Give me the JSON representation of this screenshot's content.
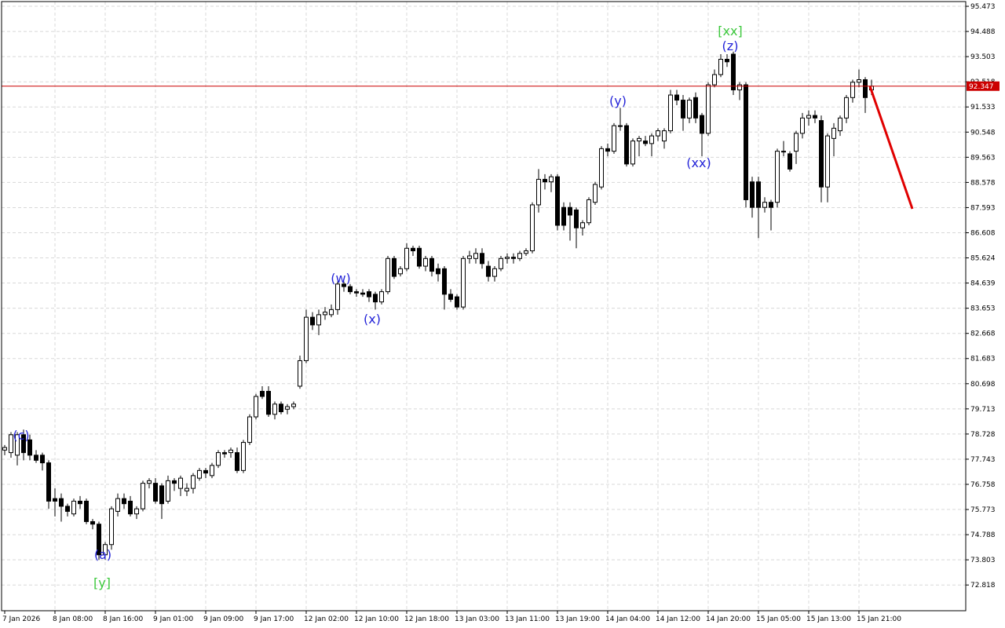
{
  "chart_data": {
    "type": "candlestick",
    "categories": [
      "7 Jan 2026",
      null,
      null,
      null,
      null,
      null,
      null,
      null,
      "8 Jan 08:00",
      null,
      null,
      null,
      null,
      null,
      null,
      null,
      "8 Jan 16:00",
      null,
      null,
      null,
      null,
      null,
      null,
      null,
      "9 Jan 01:00",
      null,
      null,
      null,
      null,
      null,
      null,
      null,
      "9 Jan 09:00",
      null,
      null,
      null,
      null,
      null,
      null,
      null,
      "9 Jan 17:00",
      null,
      null,
      null,
      null,
      null,
      null,
      null,
      "12 Jan 02:00",
      null,
      null,
      null,
      null,
      null,
      null,
      null,
      "12 Jan 10:00",
      null,
      null,
      null,
      null,
      null,
      null,
      null,
      "12 Jan 18:00",
      null,
      null,
      null,
      null,
      null,
      null,
      null,
      "13 Jan 03:00",
      null,
      null,
      null,
      null,
      null,
      null,
      null,
      "13 Jan 11:00",
      null,
      null,
      null,
      null,
      null,
      null,
      null,
      "13 Jan 19:00",
      null,
      null,
      null,
      null,
      null,
      null,
      null,
      "14 Jan 04:00",
      null,
      null,
      null,
      null,
      null,
      null,
      null,
      "14 Jan 12:00",
      null,
      null,
      null,
      null,
      null,
      null,
      null,
      "14 Jan 20:00",
      null,
      null,
      null,
      null,
      null,
      null,
      null,
      "15 Jan 05:00",
      null,
      null,
      null,
      null,
      null,
      null,
      null,
      "15 Jan 13:00",
      null,
      null,
      null,
      null,
      null,
      null,
      null,
      "15 Jan 21:00",
      null,
      null
    ],
    "candles": [
      [
        78.1,
        78.3,
        77.9,
        78.2
      ],
      [
        78.0,
        78.8,
        77.8,
        78.7
      ],
      [
        77.9,
        78.8,
        77.5,
        78.7
      ],
      [
        78.7,
        78.9,
        77.7,
        78.0
      ],
      [
        78.5,
        78.7,
        77.7,
        77.9
      ],
      [
        77.9,
        78.1,
        77.6,
        77.7
      ],
      [
        77.9,
        78.0,
        77.3,
        77.6
      ],
      [
        77.6,
        77.7,
        75.8,
        76.1
      ],
      [
        76.2,
        76.6,
        75.5,
        76.1
      ],
      [
        76.2,
        76.4,
        75.3,
        75.9
      ],
      [
        75.9,
        76.0,
        75.5,
        75.7
      ],
      [
        75.6,
        76.2,
        75.5,
        76.1
      ],
      [
        76.1,
        76.3,
        75.8,
        76.0
      ],
      [
        76.1,
        76.2,
        75.2,
        75.3
      ],
      [
        75.3,
        75.4,
        75.0,
        75.2
      ],
      [
        75.2,
        75.3,
        73.8,
        74.0
      ],
      [
        74.0,
        74.5,
        73.8,
        74.4
      ],
      [
        74.4,
        75.9,
        74.2,
        75.8
      ],
      [
        75.7,
        76.4,
        75.5,
        76.2
      ],
      [
        76.2,
        76.4,
        75.8,
        76.0
      ],
      [
        76.1,
        76.3,
        75.5,
        75.6
      ],
      [
        75.6,
        75.9,
        75.4,
        75.8
      ],
      [
        75.8,
        76.9,
        75.7,
        76.8
      ],
      [
        76.8,
        77.0,
        76.6,
        76.9
      ],
      [
        76.8,
        77.0,
        76.0,
        76.1
      ],
      [
        76.7,
        76.8,
        75.4,
        76.0
      ],
      [
        76.1,
        77.1,
        76.0,
        76.9
      ],
      [
        76.9,
        77.0,
        76.5,
        76.8
      ],
      [
        76.6,
        77.1,
        76.3,
        77.0
      ],
      [
        76.5,
        76.8,
        76.3,
        76.6
      ],
      [
        76.6,
        77.2,
        76.4,
        77.1
      ],
      [
        77.0,
        77.4,
        76.9,
        77.3
      ],
      [
        77.3,
        77.4,
        77.0,
        77.2
      ],
      [
        77.1,
        77.6,
        77.0,
        77.5
      ],
      [
        77.5,
        78.1,
        77.4,
        78.0
      ],
      [
        78.0,
        78.1,
        77.8,
        77.95
      ],
      [
        78.0,
        78.2,
        77.8,
        78.1
      ],
      [
        78.0,
        78.2,
        77.2,
        77.3
      ],
      [
        77.3,
        78.5,
        77.2,
        78.4
      ],
      [
        78.4,
        79.5,
        78.3,
        79.4
      ],
      [
        79.4,
        80.3,
        79.3,
        80.2
      ],
      [
        80.4,
        80.6,
        80.1,
        80.2
      ],
      [
        80.4,
        80.6,
        79.4,
        79.5
      ],
      [
        79.5,
        80.0,
        79.3,
        79.9
      ],
      [
        79.9,
        80.0,
        79.5,
        79.6
      ],
      [
        79.7,
        79.9,
        79.5,
        79.8
      ],
      [
        79.8,
        80.0,
        79.7,
        79.9
      ],
      [
        80.6,
        81.8,
        80.5,
        81.6
      ],
      [
        81.6,
        83.6,
        81.5,
        83.3
      ],
      [
        83.3,
        83.5,
        82.8,
        83.0
      ],
      [
        83.0,
        83.6,
        82.6,
        83.4
      ],
      [
        83.4,
        83.7,
        83.2,
        83.5
      ],
      [
        83.4,
        83.8,
        83.3,
        83.6
      ],
      [
        83.6,
        84.7,
        83.4,
        84.6
      ],
      [
        84.6,
        84.7,
        84.3,
        84.5
      ],
      [
        84.5,
        84.6,
        84.2,
        84.3
      ],
      [
        84.3,
        84.4,
        84.1,
        84.25
      ],
      [
        84.25,
        84.4,
        84.1,
        84.2
      ],
      [
        84.3,
        84.4,
        83.9,
        84.1
      ],
      [
        84.2,
        84.3,
        83.6,
        83.9
      ],
      [
        83.9,
        84.4,
        83.8,
        84.3
      ],
      [
        84.3,
        85.7,
        84.2,
        85.6
      ],
      [
        85.6,
        85.7,
        84.8,
        84.9
      ],
      [
        85.0,
        85.3,
        84.9,
        85.2
      ],
      [
        85.2,
        86.2,
        85.1,
        86.0
      ],
      [
        86.0,
        86.1,
        85.7,
        85.9
      ],
      [
        86.0,
        86.1,
        85.2,
        85.3
      ],
      [
        85.3,
        85.7,
        85.1,
        85.6
      ],
      [
        85.6,
        85.7,
        84.9,
        85.1
      ],
      [
        85.2,
        85.4,
        84.7,
        85.0
      ],
      [
        85.2,
        85.3,
        83.6,
        84.2
      ],
      [
        84.2,
        84.4,
        83.9,
        84.0
      ],
      [
        84.1,
        84.2,
        83.6,
        83.7
      ],
      [
        83.7,
        85.7,
        83.6,
        85.6
      ],
      [
        85.6,
        85.9,
        85.4,
        85.7
      ],
      [
        85.6,
        86.0,
        85.4,
        85.8
      ],
      [
        85.8,
        86.0,
        85.2,
        85.4
      ],
      [
        85.3,
        85.5,
        84.7,
        84.9
      ],
      [
        84.9,
        85.3,
        84.7,
        85.2
      ],
      [
        85.2,
        85.7,
        85.1,
        85.6
      ],
      [
        85.6,
        85.8,
        85.4,
        85.65
      ],
      [
        85.65,
        85.8,
        85.4,
        85.6
      ],
      [
        85.6,
        85.9,
        85.5,
        85.8
      ],
      [
        85.8,
        86.0,
        85.7,
        85.9
      ],
      [
        85.9,
        87.8,
        85.8,
        87.7
      ],
      [
        87.7,
        89.1,
        87.4,
        88.7
      ],
      [
        88.7,
        88.9,
        88.3,
        88.6
      ],
      [
        88.6,
        88.9,
        88.2,
        88.8
      ],
      [
        88.8,
        88.9,
        86.7,
        86.9
      ],
      [
        87.6,
        87.8,
        86.7,
        86.9
      ],
      [
        87.6,
        87.8,
        86.3,
        87.3
      ],
      [
        87.5,
        87.6,
        86.0,
        86.8
      ],
      [
        86.8,
        87.1,
        86.5,
        87.0
      ],
      [
        87.0,
        88.0,
        86.9,
        87.9
      ],
      [
        87.8,
        88.6,
        87.7,
        88.5
      ],
      [
        88.4,
        90.0,
        88.3,
        89.9
      ],
      [
        89.9,
        90.1,
        89.6,
        89.8
      ],
      [
        89.8,
        90.9,
        89.7,
        90.8
      ],
      [
        90.8,
        91.5,
        90.6,
        90.8
      ],
      [
        90.8,
        90.9,
        89.2,
        89.3
      ],
      [
        89.3,
        90.3,
        89.2,
        90.2
      ],
      [
        90.2,
        90.4,
        89.6,
        90.3
      ],
      [
        90.2,
        90.4,
        90.0,
        90.1
      ],
      [
        90.1,
        90.5,
        89.6,
        90.4
      ],
      [
        90.4,
        90.7,
        90.2,
        90.6
      ],
      [
        90.2,
        90.7,
        89.9,
        90.6
      ],
      [
        90.6,
        92.2,
        90.5,
        92.0
      ],
      [
        92.0,
        92.2,
        91.6,
        91.8
      ],
      [
        91.8,
        92.0,
        90.6,
        91.1
      ],
      [
        91.1,
        91.9,
        90.9,
        91.8
      ],
      [
        91.9,
        92.1,
        90.9,
        91.1
      ],
      [
        91.2,
        91.3,
        89.6,
        90.5
      ],
      [
        90.5,
        92.5,
        90.4,
        92.4
      ],
      [
        92.4,
        93.0,
        92.3,
        92.8
      ],
      [
        92.8,
        93.6,
        92.7,
        93.4
      ],
      [
        93.4,
        93.6,
        93.1,
        93.3
      ],
      [
        93.6,
        93.7,
        92.0,
        92.2
      ],
      [
        92.2,
        92.5,
        91.8,
        92.4
      ],
      [
        92.4,
        92.5,
        87.6,
        87.9
      ],
      [
        88.6,
        88.8,
        87.2,
        87.6
      ],
      [
        88.6,
        88.8,
        86.4,
        87.6
      ],
      [
        87.6,
        88.0,
        87.4,
        87.8
      ],
      [
        87.8,
        87.9,
        86.7,
        87.6
      ],
      [
        87.8,
        89.9,
        87.6,
        89.8
      ],
      [
        89.8,
        90.2,
        89.6,
        89.8
      ],
      [
        89.7,
        89.8,
        89.0,
        89.1
      ],
      [
        89.8,
        90.6,
        89.3,
        90.5
      ],
      [
        90.5,
        91.3,
        90.3,
        91.1
      ],
      [
        91.1,
        91.4,
        90.8,
        91.2
      ],
      [
        91.2,
        91.4,
        90.9,
        91.1
      ],
      [
        91.0,
        91.2,
        87.8,
        88.4
      ],
      [
        88.4,
        90.5,
        87.8,
        90.4
      ],
      [
        90.3,
        90.9,
        89.6,
        90.7
      ],
      [
        90.6,
        91.2,
        90.4,
        91.1
      ],
      [
        91.1,
        92.0,
        90.9,
        91.9
      ],
      [
        91.9,
        92.6,
        91.7,
        92.5
      ],
      [
        92.5,
        93.0,
        92.3,
        92.6
      ],
      [
        92.6,
        92.7,
        91.3,
        91.9
      ],
      [
        92.2,
        92.6,
        92.0,
        92.347
      ]
    ],
    "up_color": "#ffffff",
    "down_color": "#000000",
    "ylim": [
      71.81,
      95.72
    ],
    "yticks": [
      95.473,
      94.488,
      93.503,
      92.518,
      91.533,
      90.548,
      89.563,
      88.578,
      87.593,
      86.608,
      85.624,
      84.639,
      83.653,
      82.668,
      81.683,
      80.698,
      79.713,
      78.728,
      77.743,
      76.758,
      75.773,
      74.788,
      73.803,
      72.818
    ],
    "grid": true,
    "current_price": 92.347,
    "price_line_color": "#cc0000",
    "annotations": [
      {
        "text": "(c)",
        "color": "#2323d8"
      },
      {
        "text": "(a)",
        "color": "#2323d8"
      },
      {
        "text": "[y]",
        "color": "#3cc83c"
      },
      {
        "text": "(w)",
        "color": "#2323d8"
      },
      {
        "text": "(x)",
        "color": "#2323d8"
      },
      {
        "text": "(y)",
        "color": "#2323d8"
      },
      {
        "text": "(xx)",
        "color": "#2323d8"
      },
      {
        "text": "(z)",
        "color": "#2323d8"
      },
      {
        "text": "[xx]",
        "color": "#3cc83c"
      }
    ]
  }
}
